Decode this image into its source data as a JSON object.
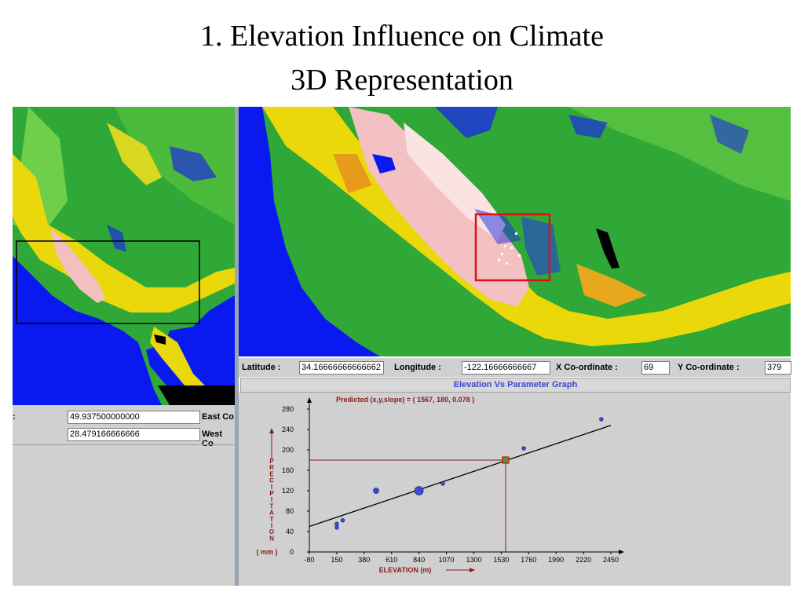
{
  "slide": {
    "title_line1": "1. Elevation Influence on Climate",
    "title_line2": "3D Representation"
  },
  "left_panel": {
    "row1_value": "49.937500000000",
    "row1_label": "East Co",
    "row2_value": "28.479166666666",
    "row2_label": "West Co",
    "row1_prefix": ":"
  },
  "coords": {
    "latitude_label": "Latitude :",
    "latitude_value": "34.16666666666662",
    "longitude_label": "Longitude :",
    "longitude_value": "-122.16666666667",
    "x_label": "X Co-ordinate :",
    "x_value": "69",
    "y_label": "Y Co-ordinate :",
    "y_value": "379"
  },
  "graph": {
    "title": "Elevation Vs Parameter Graph",
    "predicted_label": "Predicted (x,y,slope) = ( 1567, 180, 0.078 )",
    "y_axis_title": "PRECIPITATION",
    "y_unit": "( mm )",
    "x_axis_title": "ELEVATION (m)",
    "colors": {
      "axis_title": "#8b1a1a",
      "points": "#3c4cd8",
      "guide": "#8b1a1a",
      "predicted_box": "#d01010",
      "fit_line": "#000000"
    }
  },
  "chart_data": {
    "type": "scatter",
    "title": "Elevation Vs Parameter Graph",
    "xlabel": "ELEVATION (m)",
    "ylabel": "PRECIPITATION ( mm )",
    "xlim": [
      -80,
      2450
    ],
    "ylim": [
      0,
      280
    ],
    "x_ticks": [
      "-80",
      "150",
      "380",
      "610",
      "840",
      "1070",
      "1300",
      "1530",
      "1760",
      "1990",
      "2220",
      "2450"
    ],
    "y_ticks": [
      "0",
      "40",
      "80",
      "120",
      "160",
      "200",
      "240",
      "280"
    ],
    "points": [
      {
        "x": 150,
        "y": 48,
        "size": 1
      },
      {
        "x": 150,
        "y": 55,
        "size": 1
      },
      {
        "x": 200,
        "y": 62,
        "size": 1
      },
      {
        "x": 480,
        "y": 120,
        "size": 2
      },
      {
        "x": 840,
        "y": 120,
        "size": 3
      },
      {
        "x": 1040,
        "y": 134,
        "size": 1
      },
      {
        "x": 1567,
        "y": 180,
        "size": 1
      },
      {
        "x": 1720,
        "y": 203,
        "size": 1
      },
      {
        "x": 2370,
        "y": 260,
        "size": 1
      }
    ],
    "fit_line": {
      "x": [
        -80,
        2450
      ],
      "y": [
        50,
        248
      ]
    },
    "predicted": {
      "x": 1567,
      "y": 180,
      "slope": 0.078
    },
    "grid": false,
    "legend": "none"
  }
}
